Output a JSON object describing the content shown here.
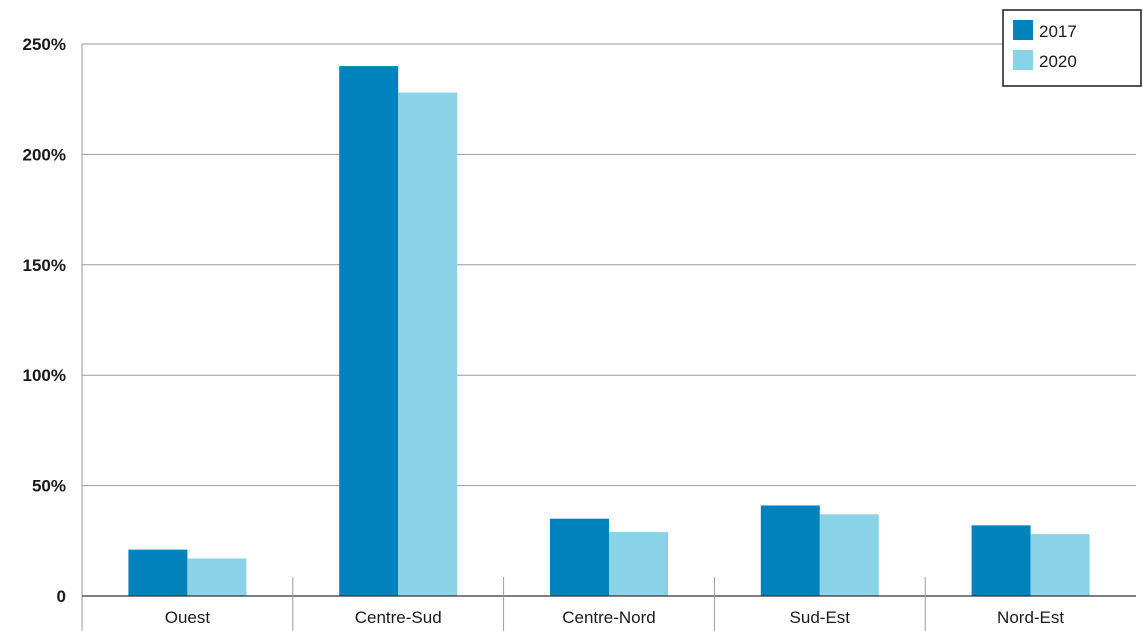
{
  "chart_data": {
    "type": "bar",
    "categories": [
      "Ouest",
      "Centre-Sud",
      "Centre-Nord",
      "Sud-Est",
      "Nord-Est"
    ],
    "series": [
      {
        "name": "2017",
        "values": [
          21,
          240,
          35,
          41,
          32
        ],
        "color": "#0083bd"
      },
      {
        "name": "2020",
        "values": [
          17,
          228,
          29,
          37,
          28
        ],
        "color": "#8ad3e6"
      }
    ],
    "y_ticks": [
      {
        "value": 0,
        "label": "0"
      },
      {
        "value": 50,
        "label": "50%"
      },
      {
        "value": 100,
        "label": "100%"
      },
      {
        "value": 150,
        "label": "150%"
      },
      {
        "value": 200,
        "label": "200%"
      },
      {
        "value": 250,
        "label": "250%"
      }
    ],
    "ylim": [
      0,
      250
    ],
    "grid": true,
    "legend_position": "top-right",
    "gridline_color": "#9a9a9a",
    "title": "",
    "xlabel": "",
    "ylabel": ""
  }
}
